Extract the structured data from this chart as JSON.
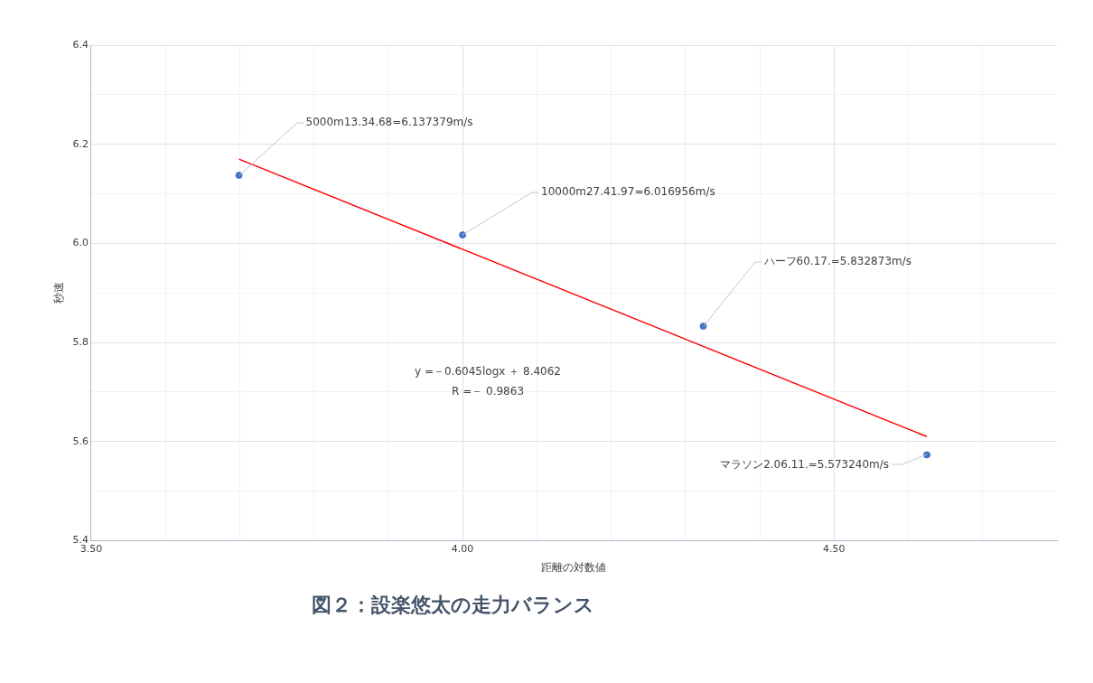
{
  "chart_data": {
    "type": "scatter",
    "title": "図２：設楽悠太の走力バランス",
    "xlabel": "距離の対数値",
    "ylabel": "秒速",
    "series": [
      {
        "type": "scatter",
        "color": "#4472c4",
        "x": [
          3.699,
          4.0,
          4.324,
          4.625
        ],
        "values": [
          6.137379,
          6.016956,
          5.832873,
          5.57324
        ],
        "marker": "circle",
        "value_labels": [
          "5000m13.34.68=6.137379m/s",
          "10000m27.41.97=6.016956m/s",
          "ハーフ60.17.=5.832873m/s",
          "マラソン2.06.11.=5.573240m/s"
        ]
      },
      {
        "type": "line",
        "color": "#ff0000",
        "x": [
          3.699,
          4.625
        ],
        "values": [
          6.17,
          5.61
        ],
        "marker": "none",
        "line_style": "solid"
      }
    ],
    "xlim": [
      3.5,
      4.8
    ],
    "xticks": [
      {
        "value": 3.5,
        "label": "3.50"
      },
      {
        "value": 3.6,
        "label": null
      },
      {
        "value": 3.7,
        "label": null
      },
      {
        "value": 3.8,
        "label": null
      },
      {
        "value": 3.9,
        "label": null
      },
      {
        "value": 4.0,
        "label": "4.00"
      },
      {
        "value": 4.1,
        "label": null
      },
      {
        "value": 4.2,
        "label": null
      },
      {
        "value": 4.3,
        "label": null
      },
      {
        "value": 4.4,
        "label": null
      },
      {
        "value": 4.5,
        "label": "4.50"
      },
      {
        "value": 4.6,
        "label": null
      },
      {
        "value": 4.7,
        "label": null
      }
    ],
    "ylim": [
      5.4,
      6.4
    ],
    "yticks": [
      {
        "value": 5.4,
        "label": "5.4"
      },
      {
        "value": 5.5,
        "label": null
      },
      {
        "value": 5.6,
        "label": "5.6"
      },
      {
        "value": 5.7,
        "label": null
      },
      {
        "value": 5.8,
        "label": "5.8"
      },
      {
        "value": 5.9,
        "label": null
      },
      {
        "value": 6.0,
        "label": "6.0"
      },
      {
        "value": 6.1,
        "label": null
      },
      {
        "value": 6.2,
        "label": "6.2"
      },
      {
        "value": 6.3,
        "label": null
      },
      {
        "value": 6.4,
        "label": "6.4"
      }
    ],
    "grid": true,
    "legend": false,
    "annotations": [
      "y =－0.6045logx ＋ 8.4062",
      "R =－ 0.9863"
    ]
  }
}
